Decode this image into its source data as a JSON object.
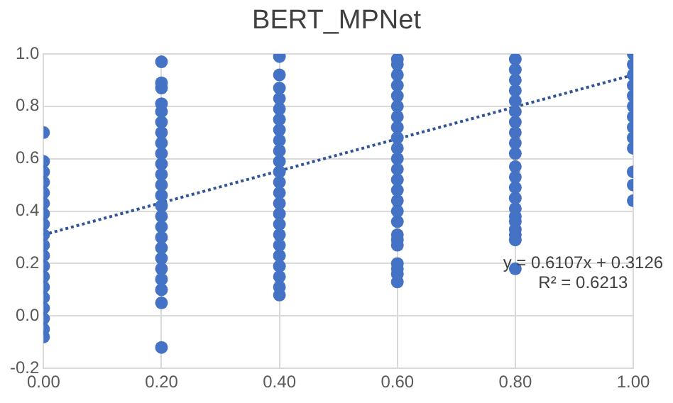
{
  "chart_data": {
    "type": "scatter",
    "title": "BERT_MPNet",
    "legend": false,
    "grid": true,
    "marker": "circle",
    "xlim": [
      0,
      1
    ],
    "ylim": [
      -0.2,
      1
    ],
    "xticks": [
      {
        "value": 0,
        "label": "0.00"
      },
      {
        "value": 0.2,
        "label": "0.20"
      },
      {
        "value": 0.4,
        "label": "0.40"
      },
      {
        "value": 0.6,
        "label": "0.60"
      },
      {
        "value": 0.8,
        "label": "0.80"
      },
      {
        "value": 1,
        "label": "1.00"
      }
    ],
    "yticks": [
      {
        "value": -0.2,
        "label": "-0.2"
      },
      {
        "value": 0,
        "label": "0.0"
      },
      {
        "value": 0.2,
        "label": "0.2"
      },
      {
        "value": 0.4,
        "label": "0.4"
      },
      {
        "value": 0.6,
        "label": "0.6"
      },
      {
        "value": 0.8,
        "label": "0.8"
      },
      {
        "value": 1,
        "label": "1.0"
      }
    ],
    "annotations": [
      "y = 0.6107x + 0.3126",
      "R² = 0.6213"
    ],
    "series": [
      {
        "color": "#4472c4",
        "x": [
          0,
          0,
          0,
          0,
          0,
          0,
          0,
          0,
          0,
          0,
          0,
          0,
          0,
          0,
          0,
          0,
          0,
          0,
          0,
          0.2,
          0.2,
          0.2,
          0.2,
          0.2,
          0.2,
          0.2,
          0.2,
          0.2,
          0.2,
          0.2,
          0.2,
          0.2,
          0.2,
          0.2,
          0.2,
          0.2,
          0.2,
          0.2,
          0.2,
          0.2,
          0.2,
          0.2,
          0.2,
          0.4,
          0.4,
          0.4,
          0.4,
          0.4,
          0.4,
          0.4,
          0.4,
          0.4,
          0.4,
          0.4,
          0.4,
          0.4,
          0.4,
          0.4,
          0.4,
          0.4,
          0.4,
          0.4,
          0.4,
          0.4,
          0.4,
          0.4,
          0.6,
          0.6,
          0.6,
          0.6,
          0.6,
          0.6,
          0.6,
          0.6,
          0.6,
          0.6,
          0.6,
          0.6,
          0.6,
          0.6,
          0.6,
          0.6,
          0.6,
          0.6,
          0.6,
          0.6,
          0.6,
          0.6,
          0.6,
          0.6,
          0.8,
          0.8,
          0.8,
          0.8,
          0.8,
          0.8,
          0.8,
          0.8,
          0.8,
          0.8,
          0.8,
          0.8,
          0.8,
          0.8,
          0.8,
          0.8,
          0.8,
          0.8,
          0.8,
          0.8,
          0.8,
          1,
          1,
          1,
          1,
          1,
          1,
          1,
          1,
          1,
          1,
          1,
          1,
          1
        ],
        "values": [
          -0.08,
          -0.05,
          -0.01,
          0.03,
          0.07,
          0.11,
          0.15,
          0.19,
          0.23,
          0.27,
          0.31,
          0.35,
          0.39,
          0.43,
          0.47,
          0.51,
          0.55,
          0.59,
          0.7,
          -0.12,
          0.05,
          0.1,
          0.14,
          0.18,
          0.22,
          0.26,
          0.3,
          0.34,
          0.38,
          0.42,
          0.46,
          0.5,
          0.54,
          0.58,
          0.62,
          0.66,
          0.7,
          0.74,
          0.78,
          0.81,
          0.87,
          0.89,
          0.97,
          0.08,
          0.11,
          0.15,
          0.19,
          0.23,
          0.27,
          0.31,
          0.35,
          0.39,
          0.43,
          0.47,
          0.51,
          0.55,
          0.59,
          0.63,
          0.67,
          0.71,
          0.75,
          0.79,
          0.83,
          0.87,
          0.92,
          0.99,
          0.13,
          0.16,
          0.18,
          0.2,
          0.27,
          0.29,
          0.31,
          0.36,
          0.4,
          0.44,
          0.48,
          0.52,
          0.56,
          0.6,
          0.64,
          0.68,
          0.72,
          0.76,
          0.8,
          0.84,
          0.88,
          0.92,
          0.96,
          0.98,
          0.18,
          0.29,
          0.31,
          0.33,
          0.36,
          0.38,
          0.41,
          0.45,
          0.49,
          0.53,
          0.57,
          0.62,
          0.66,
          0.7,
          0.74,
          0.78,
          0.82,
          0.86,
          0.9,
          0.94,
          0.98,
          0.44,
          0.5,
          0.55,
          0.64,
          0.68,
          0.72,
          0.76,
          0.8,
          0.84,
          0.88,
          0.92,
          0.96,
          1.0
        ]
      },
      {
        "type": "line",
        "color": "#2f5597",
        "line_style": "dotted",
        "marker": "none",
        "x": [
          0,
          1
        ],
        "values": [
          0.31,
          0.92
        ]
      }
    ]
  }
}
